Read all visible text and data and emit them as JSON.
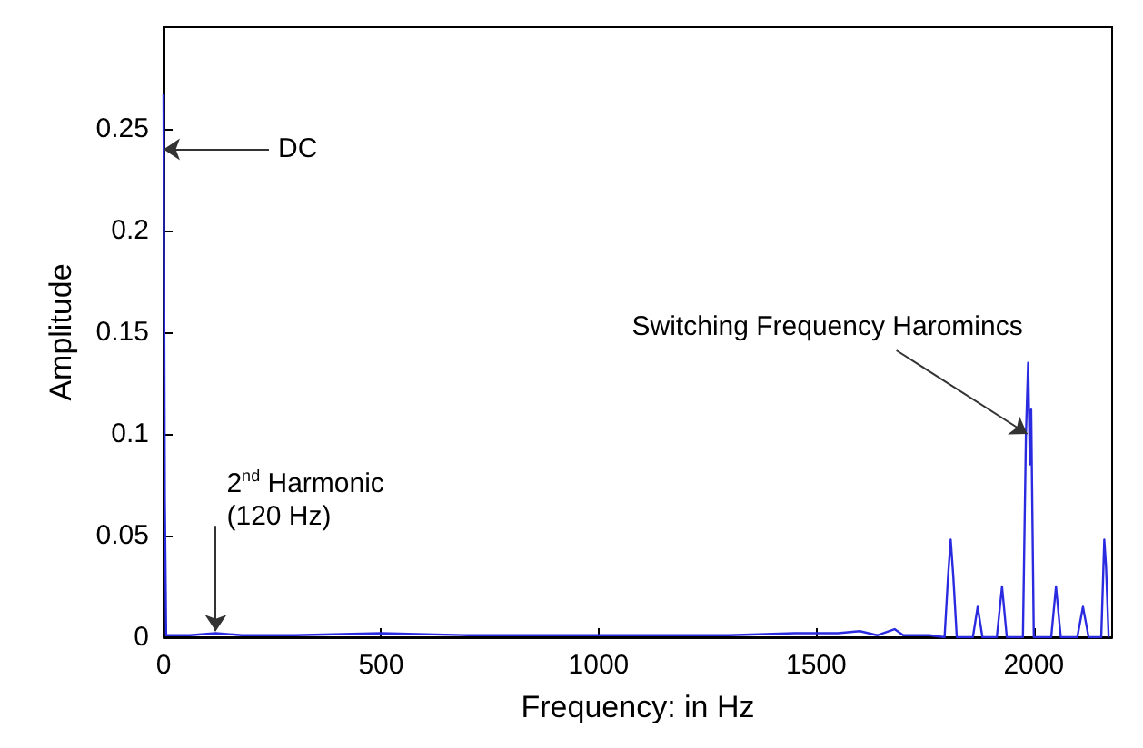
{
  "chart_data": {
    "type": "line",
    "xlabel": "Frequency: in Hz",
    "ylabel": "Amplitude",
    "x": [
      0,
      3,
      6,
      60,
      120,
      180,
      300,
      500,
      700,
      900,
      1100,
      1300,
      1450,
      1550,
      1600,
      1640,
      1680,
      1700,
      1760,
      1795,
      1803,
      1809,
      1815,
      1823,
      1860,
      1871,
      1882,
      1915,
      1927,
      1938,
      1975,
      1982,
      1987,
      1991,
      1994,
      2000,
      2040,
      2051,
      2062,
      2100,
      2113,
      2126,
      2155,
      2162,
      2166,
      2172
    ],
    "series": [
      {
        "color": "#2a2ae0",
        "values": [
          0.267,
          0.067,
          0.001,
          0.001,
          0.002,
          0.001,
          0.001,
          0.002,
          0.001,
          0.001,
          0.001,
          0.001,
          0.002,
          0.002,
          0.003,
          0.001,
          0.004,
          0.001,
          0.001,
          0,
          0.03,
          0.048,
          0.03,
          0,
          0,
          0.015,
          0,
          0,
          0.025,
          0,
          0,
          0.1,
          0.135,
          0.085,
          0.112,
          0,
          0,
          0.025,
          0,
          0,
          0.015,
          0,
          0,
          0.048,
          0.035,
          0
        ]
      }
    ],
    "xlim": [
      0,
      2180
    ],
    "xticks": [
      0,
      500,
      1000,
      1500,
      2000
    ],
    "ylim": [
      0,
      0.3
    ],
    "yticks": [
      0,
      0.05,
      0.1,
      0.15,
      0.2,
      0.25
    ],
    "grid": false,
    "marker": "none",
    "line_style": "solid",
    "annotations": [
      {
        "text": "DC",
        "x": 0,
        "y": 0.24
      },
      {
        "text": "2$^{nd}$ Harmonic\n(120 Hz)",
        "x": 120,
        "y": 0.003
      },
      {
        "text": "Switching Frequency Haromincs",
        "x": 1985,
        "y": 0.1
      }
    ]
  }
}
